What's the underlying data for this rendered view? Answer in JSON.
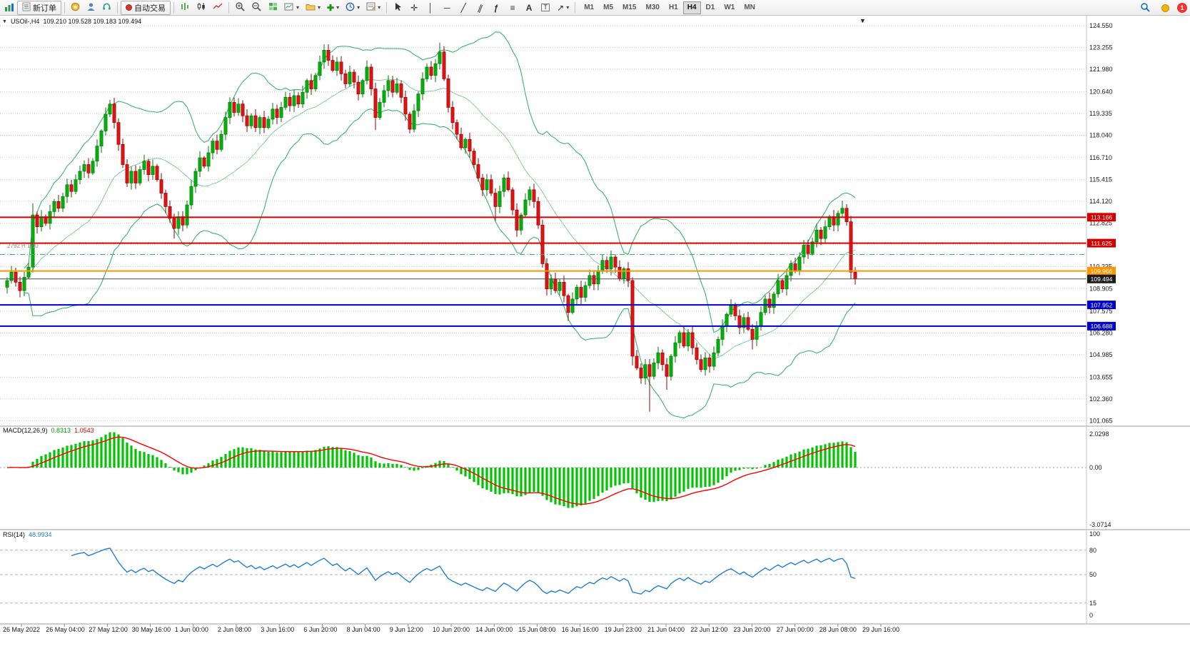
{
  "toolbar": {
    "new_order_label": "新订单",
    "autotrading_label": "自动交易",
    "timeframes": [
      "M1",
      "M5",
      "M15",
      "M30",
      "H1",
      "H4",
      "D1",
      "W1",
      "MN"
    ],
    "active_timeframe": "H4",
    "notification_count": "1",
    "glyphs": {
      "plus": "✚",
      "crosshair": "✛",
      "vline": "│",
      "hline": "─",
      "trendline": "╱",
      "channel": "∥",
      "fibonacci": "ƒ",
      "objects": "≡",
      "text": "A",
      "label": "T",
      "shapes": "↗",
      "caret": "▾"
    }
  },
  "chart": {
    "header": {
      "marker": "▼",
      "symbol": "USOil-,H4",
      "ohlc": "109.210 109.528 109.183 109.494"
    },
    "left_note": "2792 H 1.10",
    "end_marker": "▼",
    "price_ticks": [
      "124.550",
      "123.255",
      "121.980",
      "120.640",
      "119.335",
      "118.040",
      "116.710",
      "115.415",
      "114.120",
      "112.825",
      "111.530",
      "110.235",
      "108.905",
      "107.575",
      "106.280",
      "104.985",
      "103.655",
      "102.360",
      "101.065"
    ],
    "hlines": [
      {
        "price": 113.166,
        "label": "113.166",
        "color": "#d40000",
        "width": 2,
        "style": "solid",
        "label_bg": "#d40000"
      },
      {
        "price": 111.625,
        "label": "111.625",
        "color": "#d40000",
        "width": 2,
        "style": "solid",
        "label_bg": "#d40000"
      },
      {
        "price": 110.95,
        "label": "",
        "color": "#2eb872",
        "width": 1,
        "style": "dashdot",
        "label_bg": ""
      },
      {
        "price": 109.966,
        "label": "109.966",
        "color": "#ff9500",
        "width": 2,
        "style": "solid",
        "label_bg": "#ff9500"
      },
      {
        "price": 109.494,
        "label": "109.494",
        "color": "#4d4d4d",
        "width": 1,
        "style": "solid",
        "label_bg": "#1c1c1c"
      },
      {
        "price": 107.952,
        "label": "107.952",
        "color": "#0000cd",
        "width": 2,
        "style": "solid",
        "label_bg": "#0000cd"
      },
      {
        "price": 106.688,
        "label": "106.688",
        "color": "#0000cd",
        "width": 2,
        "style": "solid",
        "label_bg": "#0000cd"
      }
    ],
    "colors": {
      "up": "#00b30a",
      "up_stroke": "#067806",
      "down": "#e81010",
      "down_stroke": "#8f0404",
      "bollinger": "#3cb371",
      "grid": "#c9c9c9",
      "macd_bar": "#00c400",
      "macd_signal": "#ff0000",
      "rsi_line": "#1f7fd4",
      "axis_text": "#1a1a1a",
      "separator": "#9e9e9e",
      "axis_border": "#c4c4c4",
      "level_dash": "#b0b0b0"
    }
  },
  "chart_data": {
    "type": "candlestick",
    "symbol": "USOil",
    "timeframe": "H4",
    "first_open": 109.0,
    "closes": [
      109.4,
      109.9,
      109.3,
      108.8,
      109.6,
      110.2,
      113.3,
      112.6,
      113.2,
      112.8,
      113.5,
      114.1,
      113.7,
      114.4,
      115.1,
      114.7,
      115.4,
      115.9,
      116.3,
      115.8,
      116.5,
      117.4,
      118.3,
      119.3,
      119.9,
      118.8,
      117.5,
      116.3,
      115.2,
      115.9,
      115.2,
      116.0,
      116.5,
      115.7,
      116.2,
      115.4,
      114.6,
      113.8,
      113.1,
      112.5,
      113.2,
      112.7,
      113.9,
      115.0,
      115.9,
      116.7,
      116.2,
      117.0,
      117.7,
      117.2,
      118.1,
      119.1,
      120.0,
      119.4,
      119.9,
      119.2,
      118.6,
      119.2,
      118.5,
      119.1,
      118.5,
      119.0,
      119.6,
      119.1,
      119.7,
      120.3,
      119.8,
      120.4,
      119.9,
      120.6,
      121.3,
      120.8,
      121.6,
      122.4,
      123.1,
      122.5,
      121.9,
      122.4,
      121.7,
      121.1,
      121.8,
      121.2,
      120.5,
      121.3,
      122.1,
      120.8,
      119.1,
      120.0,
      120.7,
      121.3,
      120.6,
      121.1,
      120.3,
      119.3,
      118.4,
      119.5,
      120.5,
      121.4,
      122.1,
      121.6,
      122.3,
      123.0,
      121.4,
      119.7,
      118.8,
      118.1,
      117.3,
      117.8,
      117.1,
      116.3,
      115.5,
      114.8,
      115.4,
      114.6,
      113.8,
      114.7,
      115.5,
      114.8,
      113.6,
      112.4,
      113.3,
      114.2,
      114.8,
      114.1,
      112.7,
      110.4,
      108.9,
      109.5,
      108.8,
      109.3,
      108.5,
      107.5,
      108.3,
      109.0,
      108.4,
      109.1,
      109.7,
      109.2,
      110.0,
      110.6,
      110.1,
      110.8,
      110.2,
      109.5,
      110.1,
      109.4,
      104.9,
      104.2,
      103.6,
      104.4,
      103.7,
      104.5,
      105.1,
      104.4,
      103.7,
      104.9,
      105.7,
      106.3,
      105.5,
      106.3,
      105.4,
      104.7,
      104.1,
      104.8,
      104.3,
      105.1,
      105.9,
      106.7,
      107.4,
      107.9,
      107.3,
      106.6,
      107.2,
      106.5,
      105.9,
      106.7,
      107.5,
      108.3,
      107.8,
      108.6,
      109.4,
      108.9,
      109.7,
      110.4,
      110.0,
      110.8,
      111.5,
      111.0,
      111.7,
      112.4,
      111.9,
      112.6,
      113.2,
      112.7,
      113.4,
      113.7,
      112.9,
      109.9,
      109.49
    ],
    "wick_overrides": {
      "6": {
        "high": 114.0
      },
      "24": {
        "high": 120.15
      },
      "39": {
        "low": 111.9
      },
      "74": {
        "high": 123.45
      },
      "86": {
        "low": 118.35
      },
      "101": {
        "high": 123.55
      },
      "114": {
        "low": 112.95
      },
      "131": {
        "low": 107.0
      },
      "146": {
        "low": 104.35
      },
      "150": {
        "low": 101.6
      },
      "154": {
        "low": 102.9
      },
      "174": {
        "low": 105.3
      },
      "195": {
        "high": 114.15
      },
      "198": {
        "low": 109.15
      }
    },
    "indicators": {
      "bollinger": {
        "period": 20,
        "deviation": 2
      },
      "macd": {
        "fast": 12,
        "slow": 26,
        "signal": 9
      },
      "rsi": {
        "period": 14
      }
    }
  },
  "macd_panel": {
    "title": "MACD(12,26,9)",
    "main_value": "0.8313",
    "signal_value": "1.0543",
    "axis_top": "2.0298",
    "axis_zero": "0.00",
    "axis_bottom": "-3.0714"
  },
  "rsi_panel": {
    "title": "RSI(14)",
    "value": "48.9934",
    "axis_labels": [
      "100",
      "80",
      "50",
      "15",
      "0"
    ],
    "levels": [
      80,
      50,
      15
    ]
  },
  "time_axis": {
    "labels": [
      "26 May 2022",
      "26 May 04:00",
      "27 May 12:00",
      "30 May 16:00",
      "1 Jun 00:00",
      "2 Jun 08:00",
      "3 Jun 16:00",
      "6 Jun 20:00",
      "8 Jun 04:00",
      "9 Jun 12:00",
      "10 Jun 20:00",
      "14 Jun 00:00",
      "15 Jun 08:00",
      "16 Jun 16:00",
      "19 Jun 23:00",
      "21 Jun 04:00",
      "22 Jun 12:00",
      "23 Jun 20:00",
      "27 Jun 00:00",
      "28 Jun 08:00",
      "29 Jun 16:00"
    ]
  }
}
